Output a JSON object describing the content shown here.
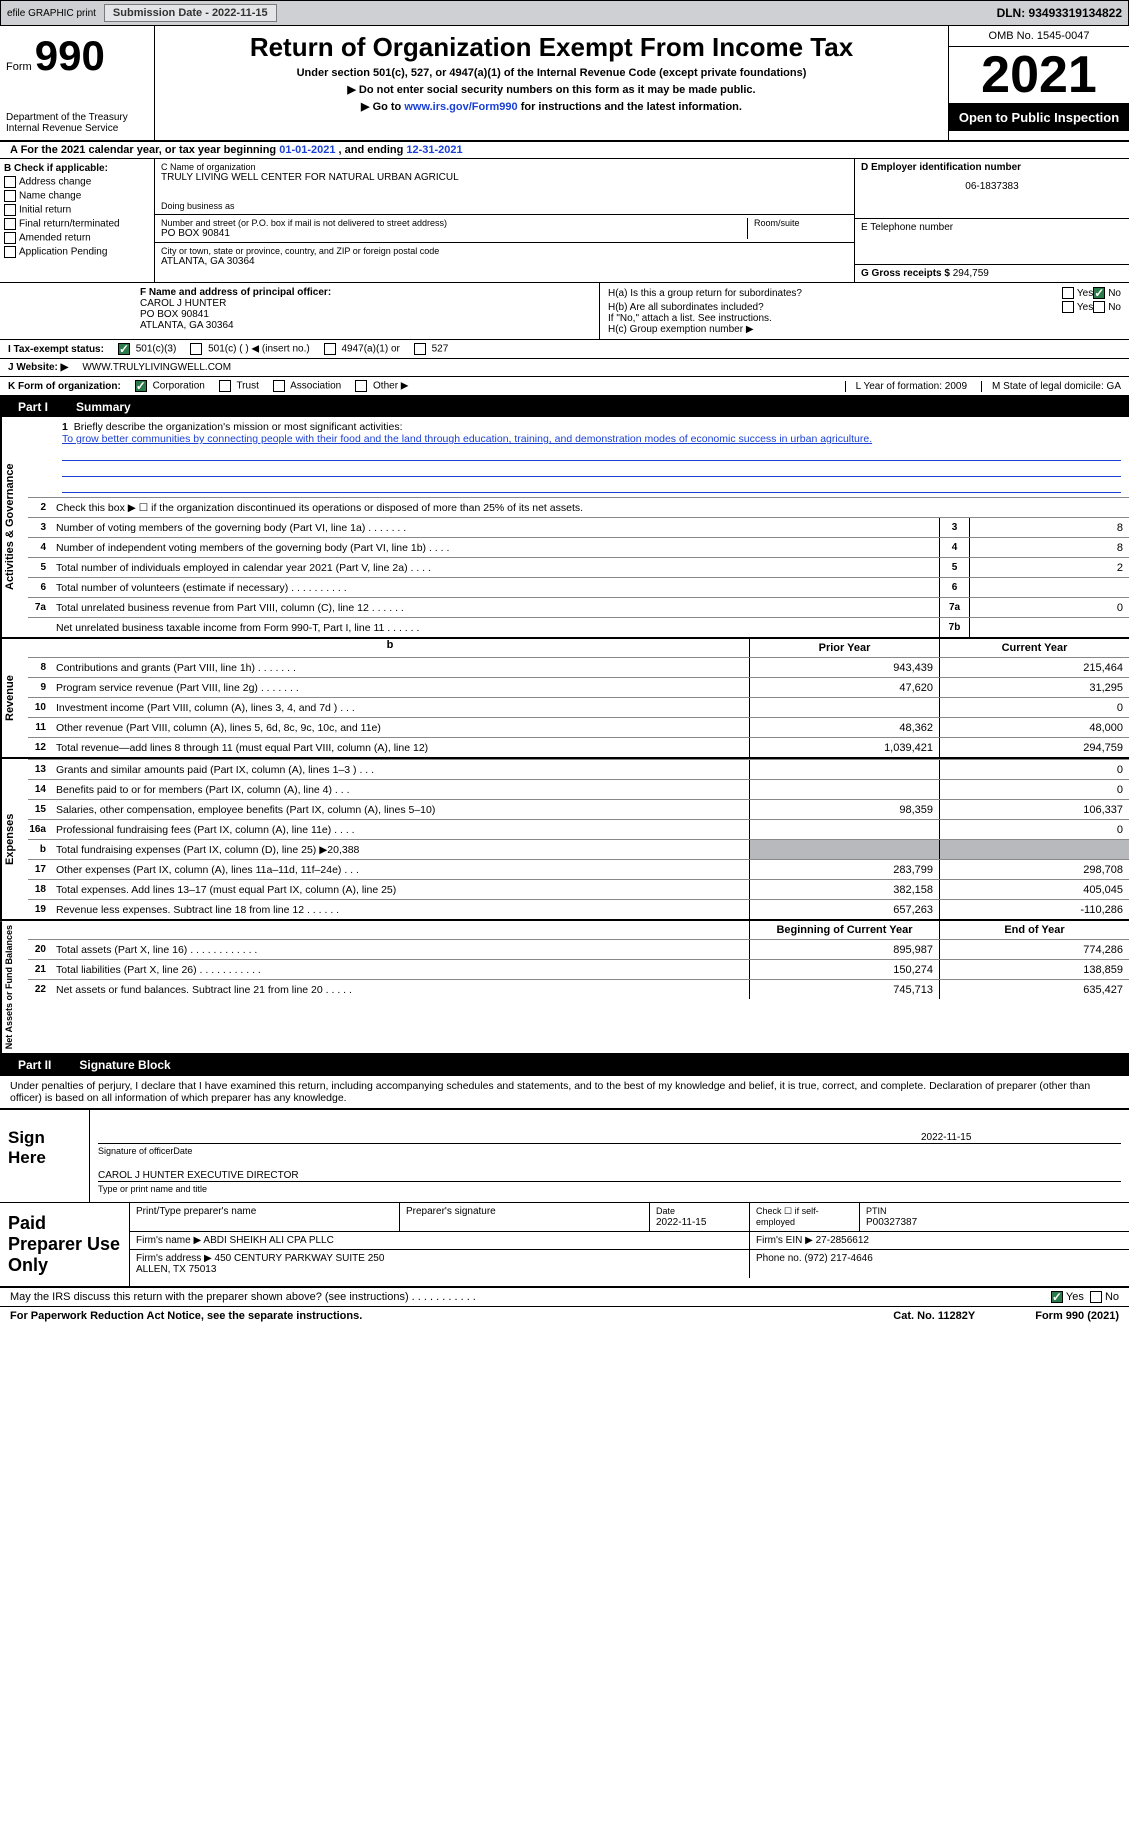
{
  "topbar": {
    "efile": "efile GRAPHIC print",
    "subdate_lbl": "Submission Date - 2022-11-15",
    "dln": "DLN: 93493319134822"
  },
  "header": {
    "form": "Form",
    "formnum": "990",
    "dept": "Department of the Treasury\nInternal Revenue Service",
    "title": "Return of Organization Exempt From Income Tax",
    "sub1": "Under section 501(c), 527, or 4947(a)(1) of the Internal Revenue Code (except private foundations)",
    "sub2": "▶ Do not enter social security numbers on this form as it may be made public.",
    "sub3": "▶ Go to www.irs.gov/Form990 for instructions and the latest information.",
    "link": "www.irs.gov/Form990",
    "omb": "OMB No. 1545-0047",
    "year": "2021",
    "open": "Open to Public\nInspection"
  },
  "rowA": {
    "pre": "A For the 2021 calendar year, or tax year beginning ",
    "begin": "01-01-2021",
    "mid": " , and ending ",
    "end": "12-31-2021"
  },
  "colB": {
    "lbl": "B Check if applicable:",
    "items": [
      "Address change",
      "Name change",
      "Initial return",
      "Final return/terminated",
      "Amended return",
      "Application Pending"
    ]
  },
  "colC": {
    "name_lbl": "C Name of organization",
    "name": "TRULY LIVING WELL CENTER FOR NATURAL URBAN AGRICUL",
    "dba_lbl": "Doing business as",
    "addr_lbl": "Number and street (or P.O. box if mail is not delivered to street address)",
    "room_lbl": "Room/suite",
    "addr": "PO BOX 90841",
    "city_lbl": "City or town, state or province, country, and ZIP or foreign postal code",
    "city": "ATLANTA, GA  30364"
  },
  "colD": {
    "ein_lbl": "D Employer identification number",
    "ein": "06-1837383",
    "tel_lbl": "E Telephone number",
    "gross_lbl": "G Gross receipts $",
    "gross": "294,759"
  },
  "f": {
    "lbl": "F  Name and address of principal officer:",
    "name": "CAROL J HUNTER",
    "addr1": "PO BOX 90841",
    "addr2": "ATLANTA, GA  30364"
  },
  "h": {
    "a": "H(a)  Is this a group return for subordinates?",
    "b": "H(b)  Are all subordinates included?",
    "note": "If \"No,\" attach a list. See instructions.",
    "c": "H(c)  Group exemption number ▶",
    "yes": "Yes",
    "no": "No"
  },
  "i": {
    "lbl": "I   Tax-exempt status:",
    "o1": "501(c)(3)",
    "o2": "501(c) (   ) ◀ (insert no.)",
    "o3": "4947(a)(1) or",
    "o4": "527"
  },
  "j": {
    "lbl": "J   Website: ▶",
    "val": "WWW.TRULYLIVINGWELL.COM"
  },
  "k": {
    "lbl": "K Form of organization:",
    "o1": "Corporation",
    "o2": "Trust",
    "o3": "Association",
    "o4": "Other ▶",
    "l": "L Year of formation: 2009",
    "m": "M State of legal domicile: GA"
  },
  "part1": {
    "p": "Part I",
    "t": "Summary"
  },
  "activities": {
    "q1": "Briefly describe the organization's mission or most significant activities:",
    "mission": "To grow better communities by connecting people with their food and the land through education, training, and demonstration modes of economic success in urban agriculture.",
    "q2": "Check this box ▶ ☐  if the organization discontinued its operations or disposed of more than 25% of its net assets.",
    "rows": [
      {
        "n": "3",
        "t": "Number of voting members of the governing body (Part VI, line 1a)  .   .   .   .   .   .   .",
        "b": "3",
        "v": "8"
      },
      {
        "n": "4",
        "t": "Number of independent voting members of the governing body (Part VI, line 1b)   .   .   .   .",
        "b": "4",
        "v": "8"
      },
      {
        "n": "5",
        "t": "Total number of individuals employed in calendar year 2021 (Part V, line 2a)   .   .   .   .",
        "b": "5",
        "v": "2"
      },
      {
        "n": "6",
        "t": "Total number of volunteers (estimate if necessary)    .   .   .   .   .   .   .   .   .   .",
        "b": "6",
        "v": ""
      },
      {
        "n": "7a",
        "t": "Total unrelated business revenue from Part VIII, column (C), line 12   .   .   .   .   .   .",
        "b": "7a",
        "v": "0"
      },
      {
        "n": "",
        "t": "Net unrelated business taxable income from Form 990-T, Part I, line 11   .   .   .   .   .   .",
        "b": "7b",
        "v": ""
      }
    ]
  },
  "colheaders": {
    "prior": "Prior Year",
    "current": "Current Year"
  },
  "revenue": [
    {
      "n": "8",
      "t": "Contributions and grants (Part VIII, line 1h)   .   .   .   .   .   .   .",
      "p": "943,439",
      "c": "215,464"
    },
    {
      "n": "9",
      "t": "Program service revenue (Part VIII, line 2g)    .   .   .   .   .   .   .",
      "p": "47,620",
      "c": "31,295"
    },
    {
      "n": "10",
      "t": "Investment income (Part VIII, column (A), lines 3, 4, and 7d )    .   .   .",
      "p": "",
      "c": "0"
    },
    {
      "n": "11",
      "t": "Other revenue (Part VIII, column (A), lines 5, 6d, 8c, 9c, 10c, and 11e)",
      "p": "48,362",
      "c": "48,000"
    },
    {
      "n": "12",
      "t": "Total revenue—add lines 8 through 11 (must equal Part VIII, column (A), line 12)",
      "p": "1,039,421",
      "c": "294,759"
    }
  ],
  "expenses": [
    {
      "n": "13",
      "t": "Grants and similar amounts paid (Part IX, column (A), lines 1–3 )  .   .   .",
      "p": "",
      "c": "0"
    },
    {
      "n": "14",
      "t": "Benefits paid to or for members (Part IX, column (A), line 4)   .   .   .",
      "p": "",
      "c": "0"
    },
    {
      "n": "15",
      "t": "Salaries, other compensation, employee benefits (Part IX, column (A), lines 5–10)",
      "p": "98,359",
      "c": "106,337"
    },
    {
      "n": "16a",
      "t": "Professional fundraising fees (Part IX, column (A), line 11e)   .   .   .   .",
      "p": "",
      "c": "0"
    },
    {
      "n": "b",
      "t": "Total fundraising expenses (Part IX, column (D), line 25) ▶20,388",
      "p": "grey",
      "c": "grey"
    },
    {
      "n": "17",
      "t": "Other expenses (Part IX, column (A), lines 11a–11d, 11f–24e)   .   .   .",
      "p": "283,799",
      "c": "298,708"
    },
    {
      "n": "18",
      "t": "Total expenses. Add lines 13–17 (must equal Part IX, column (A), line 25)",
      "p": "382,158",
      "c": "405,045"
    },
    {
      "n": "19",
      "t": "Revenue less expenses. Subtract line 18 from line 12   .   .   .   .   .   .",
      "p": "657,263",
      "c": "-110,286"
    }
  ],
  "colheaders2": {
    "begin": "Beginning of Current Year",
    "end": "End of Year"
  },
  "netassets": [
    {
      "n": "20",
      "t": "Total assets (Part X, line 16)   .   .   .   .   .   .   .   .   .   .   .   .",
      "p": "895,987",
      "c": "774,286"
    },
    {
      "n": "21",
      "t": "Total liabilities (Part X, line 26)   .   .   .   .   .   .   .   .   .   .   .",
      "p": "150,274",
      "c": "138,859"
    },
    {
      "n": "22",
      "t": "Net assets or fund balances. Subtract line 21 from line 20   .   .   .   .   .",
      "p": "745,713",
      "c": "635,427"
    }
  ],
  "part2": {
    "p": "Part II",
    "t": "Signature Block"
  },
  "decl": "Under penalties of perjury, I declare that I have examined this return, including accompanying schedules and statements, and to the best of my knowledge and belief, it is true, correct, and complete. Declaration of preparer (other than officer) is based on all information of which preparer has any knowledge.",
  "sign": {
    "here": "Sign Here",
    "sig_lbl": "Signature of officer",
    "date_lbl": "Date",
    "date": "2022-11-15",
    "name": "CAROL J HUNTER  EXECUTIVE DIRECTOR",
    "name_lbl": "Type or print name and title"
  },
  "prep": {
    "lbl": "Paid Preparer Use Only",
    "h1": "Print/Type preparer's name",
    "h2": "Preparer's signature",
    "h3_l": "Date",
    "h3": "2022-11-15",
    "h4": "Check ☐ if self-employed",
    "h5_l": "PTIN",
    "h5": "P00327387",
    "firm_l": "Firm's name    ▶",
    "firm": "ABDI SHEIKH ALI CPA PLLC",
    "ein_l": "Firm's EIN ▶",
    "ein": "27-2856612",
    "addr_l": "Firm's address ▶",
    "addr": "450 CENTURY PARKWAY SUITE 250\nALLEN, TX  75013",
    "ph_l": "Phone no.",
    "ph": "(972) 217-4646"
  },
  "discuss": "May the IRS discuss this return with the preparer shown above? (see instructions)   .   .   .   .   .   .   .   .   .   .   .",
  "footer": {
    "l": "For Paperwork Reduction Act Notice, see the separate instructions.",
    "m": "Cat. No. 11282Y",
    "r": "Form 990 (2021)"
  }
}
